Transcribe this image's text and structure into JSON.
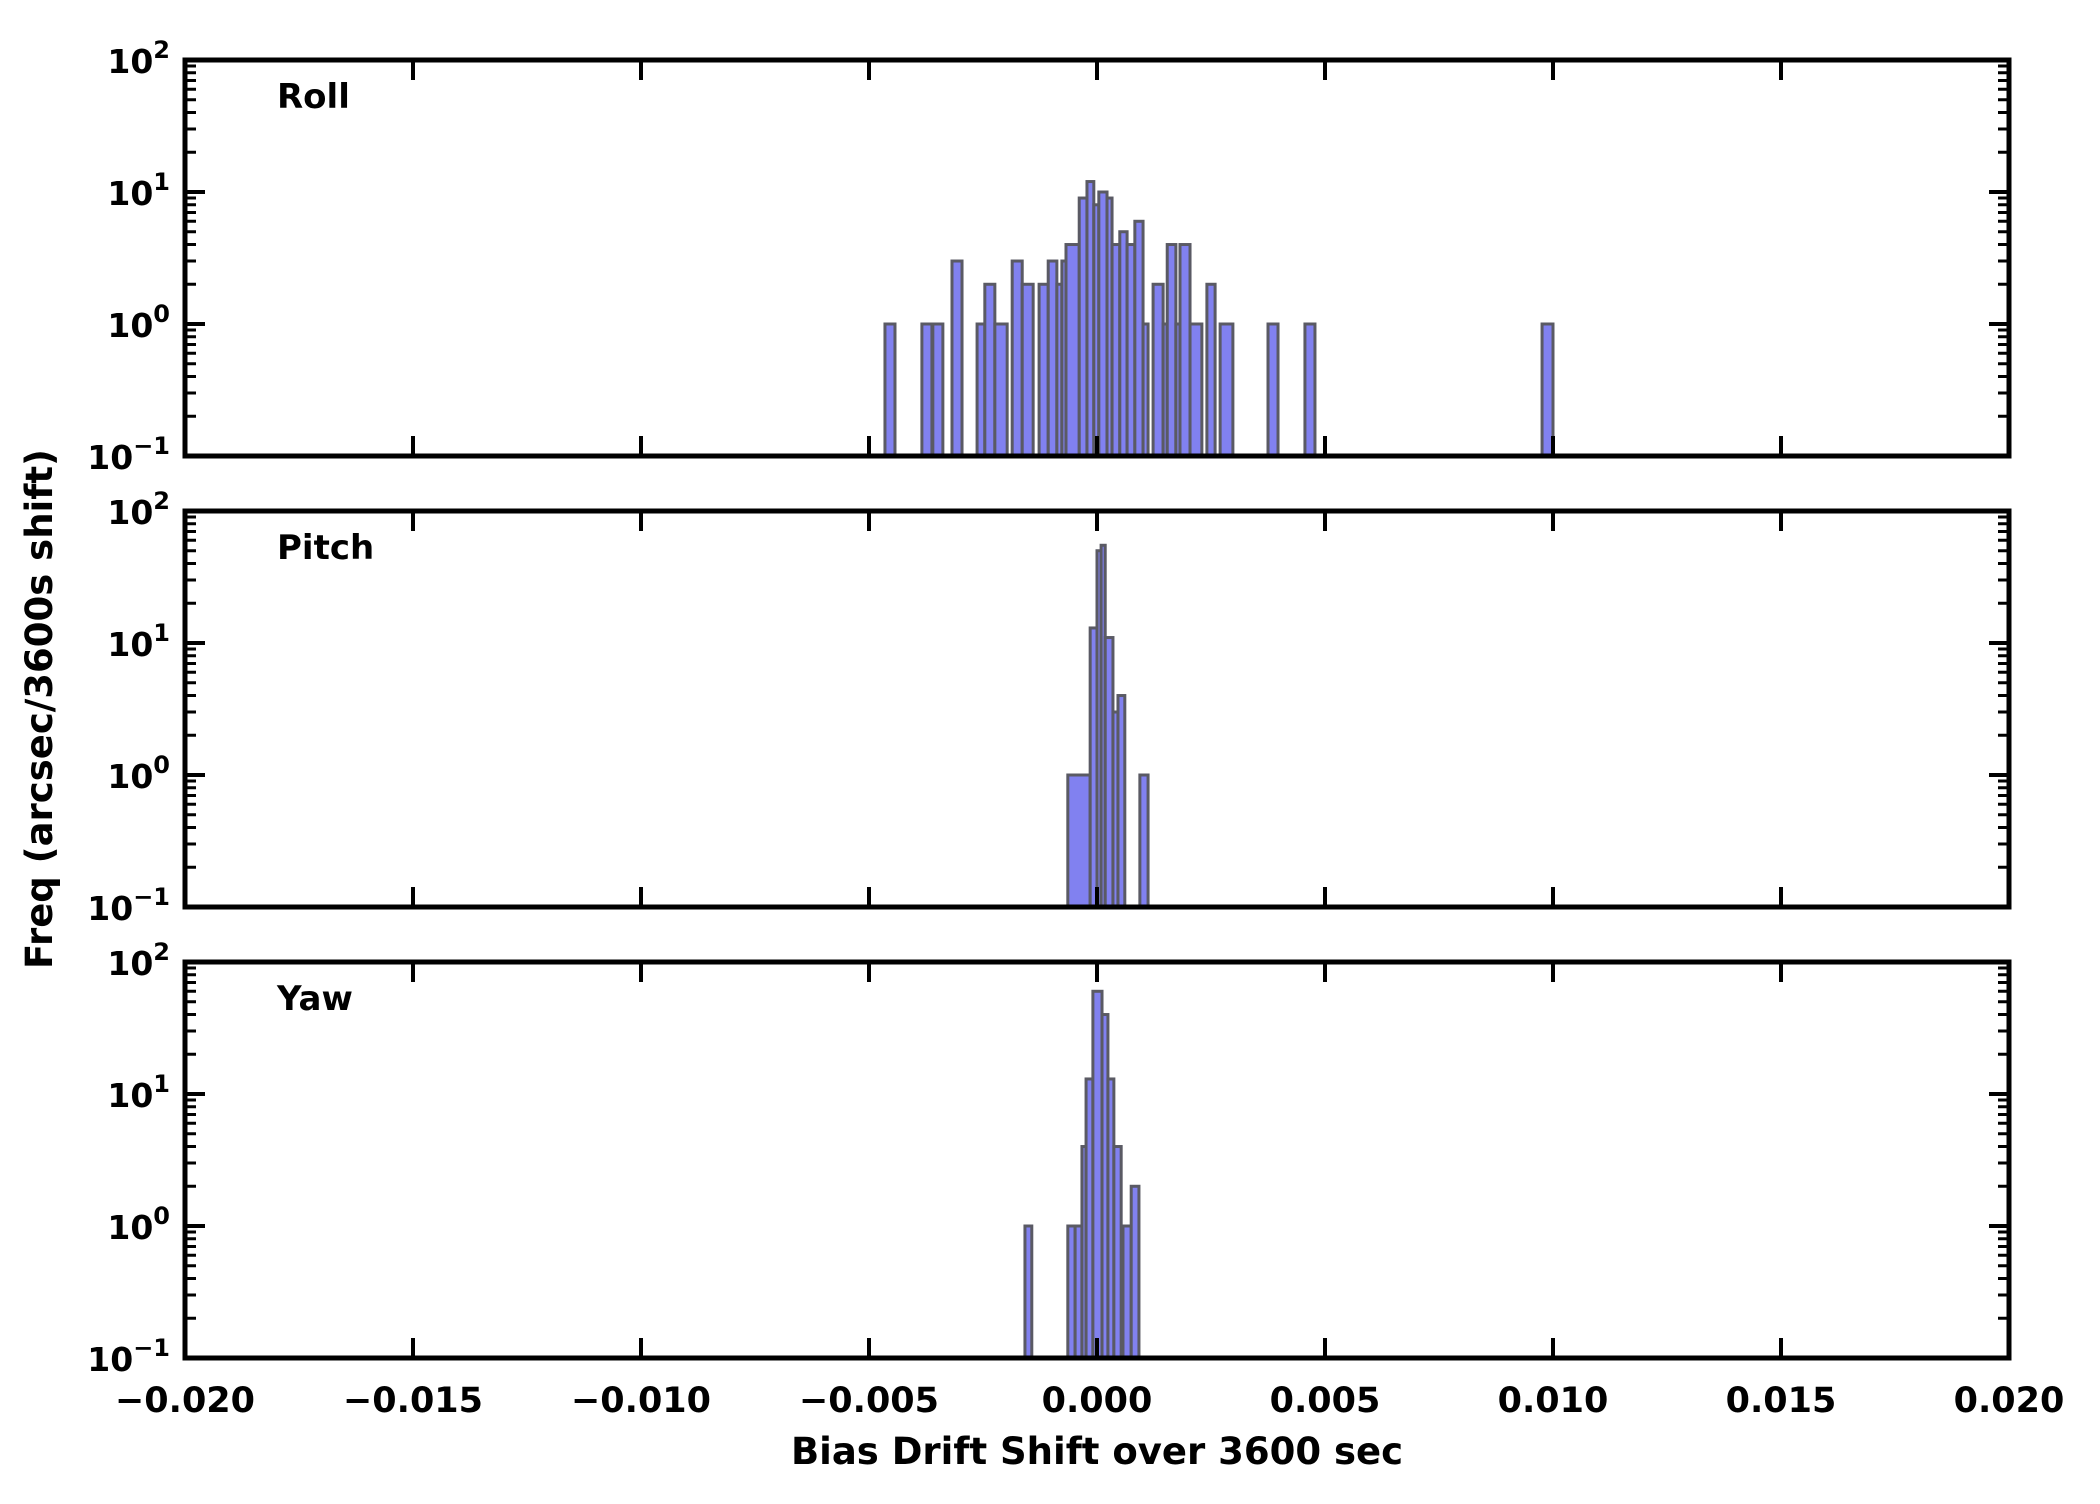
{
  "figure": {
    "xlabel": "Bias Drift Shift over 3600 sec",
    "ylabel": "Freq (arcsec/3600s shift)",
    "xlim": [
      -0.02,
      0.02
    ],
    "x_tick_values": [
      -0.02,
      -0.015,
      -0.01,
      -0.005,
      0.0,
      0.005,
      0.01,
      0.015,
      0.02
    ],
    "x_tick_labels": [
      "−0.020",
      "−0.015",
      "−0.010",
      "−0.005",
      "0.000",
      "0.005",
      "0.010",
      "0.015",
      "0.020"
    ],
    "y_tick_exponents": [
      2,
      1,
      0,
      -1
    ],
    "ylim_exponents": [
      -1,
      2
    ],
    "colors": {
      "bar_fill": "#8181f0",
      "bar_edge": "#5a5a64",
      "axis": "#000000",
      "background": "#ffffff"
    }
  },
  "chart_data": [
    {
      "type": "bar",
      "subtype": "histogram-log-y",
      "title": "Roll",
      "xlabel": "Bias Drift Shift over 3600 sec",
      "ylabel": "Freq (arcsec/3600s shift)",
      "xlim": [
        -0.02,
        0.02
      ],
      "ylim": [
        0.1,
        100
      ],
      "bars": [
        {
          "x0": -0.00465,
          "x1": -0.00443,
          "count": 1
        },
        {
          "x0": -0.00384,
          "x1": -0.00362,
          "count": 1
        },
        {
          "x0": -0.0036,
          "x1": -0.00338,
          "count": 1
        },
        {
          "x0": -0.00318,
          "x1": -0.00296,
          "count": 3
        },
        {
          "x0": -0.00263,
          "x1": -0.00246,
          "count": 1
        },
        {
          "x0": -0.00246,
          "x1": -0.00224,
          "count": 2
        },
        {
          "x0": -0.00224,
          "x1": -0.00197,
          "count": 1
        },
        {
          "x0": -0.00186,
          "x1": -0.00164,
          "count": 3
        },
        {
          "x0": -0.00164,
          "x1": -0.0014,
          "count": 2
        },
        {
          "x0": -0.00127,
          "x1": -0.00107,
          "count": 2
        },
        {
          "x0": -0.00107,
          "x1": -0.00088,
          "count": 3
        },
        {
          "x0": -0.00088,
          "x1": -0.00077,
          "count": 2
        },
        {
          "x0": -0.00077,
          "x1": -0.00068,
          "count": 3
        },
        {
          "x0": -0.00068,
          "x1": -0.00039,
          "count": 4
        },
        {
          "x0": -0.00039,
          "x1": -0.00022,
          "count": 9
        },
        {
          "x0": -0.00022,
          "x1": -7e-05,
          "count": 12
        },
        {
          "x0": -7e-05,
          "x1": 4e-05,
          "count": 8
        },
        {
          "x0": 4e-05,
          "x1": 0.00022,
          "count": 10
        },
        {
          "x0": 0.00022,
          "x1": 0.00033,
          "count": 9
        },
        {
          "x0": 0.00033,
          "x1": 0.0005,
          "count": 4
        },
        {
          "x0": 0.0005,
          "x1": 0.00066,
          "count": 5
        },
        {
          "x0": 0.00066,
          "x1": 0.00083,
          "count": 4
        },
        {
          "x0": 0.00083,
          "x1": 0.00101,
          "count": 6
        },
        {
          "x0": 0.00101,
          "x1": 0.00112,
          "count": 1
        },
        {
          "x0": 0.00123,
          "x1": 0.00145,
          "count": 2
        },
        {
          "x0": 0.00145,
          "x1": 0.00154,
          "count": 1
        },
        {
          "x0": 0.00154,
          "x1": 0.00173,
          "count": 4
        },
        {
          "x0": 0.00173,
          "x1": 0.00182,
          "count": 1
        },
        {
          "x0": 0.00182,
          "x1": 0.00204,
          "count": 4
        },
        {
          "x0": 0.00204,
          "x1": 0.0023,
          "count": 1
        },
        {
          "x0": 0.00241,
          "x1": 0.00259,
          "count": 2
        },
        {
          "x0": 0.0027,
          "x1": 0.00298,
          "count": 1
        },
        {
          "x0": 0.00375,
          "x1": 0.00397,
          "count": 1
        },
        {
          "x0": 0.00456,
          "x1": 0.00478,
          "count": 1
        },
        {
          "x0": 0.00976,
          "x1": 0.01,
          "count": 1
        }
      ]
    },
    {
      "type": "bar",
      "subtype": "histogram-log-y",
      "title": "Pitch",
      "xlabel": "Bias Drift Shift over 3600 sec",
      "ylabel": "Freq (arcsec/3600s shift)",
      "xlim": [
        -0.02,
        0.02
      ],
      "ylim": [
        0.1,
        100
      ],
      "bars": [
        {
          "x0": -0.00064,
          "x1": -0.00015,
          "count": 1
        },
        {
          "x0": -0.00015,
          "x1": 0.0,
          "count": 13
        },
        {
          "x0": 0.0,
          "x1": 9e-05,
          "count": 50
        },
        {
          "x0": 9e-05,
          "x1": 0.00018,
          "count": 55
        },
        {
          "x0": 0.00018,
          "x1": 0.00035,
          "count": 11
        },
        {
          "x0": 0.00035,
          "x1": 0.00046,
          "count": 3
        },
        {
          "x0": 0.00046,
          "x1": 0.00061,
          "count": 4
        },
        {
          "x0": 0.00094,
          "x1": 0.00112,
          "count": 1
        }
      ]
    },
    {
      "type": "bar",
      "subtype": "histogram-log-y",
      "title": "Yaw",
      "xlabel": "Bias Drift Shift over 3600 sec",
      "ylabel": "Freq (arcsec/3600s shift)",
      "xlim": [
        -0.02,
        0.02
      ],
      "ylim": [
        0.1,
        100
      ],
      "bars": [
        {
          "x0": -0.00158,
          "x1": -0.00143,
          "count": 1
        },
        {
          "x0": -0.00064,
          "x1": -0.00048,
          "count": 1
        },
        {
          "x0": -0.00048,
          "x1": -0.00033,
          "count": 1
        },
        {
          "x0": -0.00033,
          "x1": -0.00024,
          "count": 4
        },
        {
          "x0": -0.00024,
          "x1": -9e-05,
          "count": 13
        },
        {
          "x0": -9e-05,
          "x1": 0.00011,
          "count": 60
        },
        {
          "x0": 0.00011,
          "x1": 0.00024,
          "count": 40
        },
        {
          "x0": 0.00024,
          "x1": 0.00037,
          "count": 13
        },
        {
          "x0": 0.00037,
          "x1": 0.00053,
          "count": 4
        },
        {
          "x0": 0.00057,
          "x1": 0.00075,
          "count": 1
        },
        {
          "x0": 0.00075,
          "x1": 0.00092,
          "count": 2
        }
      ]
    }
  ]
}
